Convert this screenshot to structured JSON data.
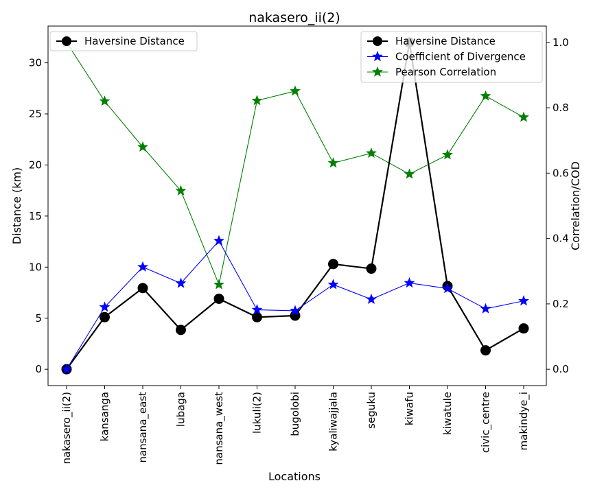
{
  "chart_data": {
    "type": "line",
    "title": "nakasero_ii(2)",
    "xlabel": "Locations",
    "ylabel_left": "Distance (km)",
    "ylabel_right": "Correlation/COD",
    "categories": [
      "nakasero_ii(2)",
      "kansanga",
      "nansana_east",
      "lubaga",
      "nansana_west",
      "lukuli(2)",
      "bugolobi",
      "kyaliwajjala",
      "seguku",
      "kiwafu",
      "kiwatule",
      "civic_centre",
      "makindye_i"
    ],
    "ylim_left": [
      -1.6,
      33.6
    ],
    "ylim_right": [
      -0.05,
      1.05
    ],
    "yticks_left": [
      0,
      5,
      10,
      15,
      20,
      25,
      30
    ],
    "yticks_right": [
      0.0,
      0.2,
      0.4,
      0.6,
      0.8,
      1.0
    ],
    "yticklabels_right": [
      "0.0",
      "0.2",
      "0.4",
      "0.6",
      "0.8",
      "1.0"
    ],
    "series": [
      {
        "name": "Haversine Distance",
        "axis": "left",
        "color": "#000000",
        "marker": "circle",
        "values": [
          0.0,
          5.1,
          7.95,
          3.85,
          6.9,
          5.1,
          5.25,
          10.3,
          9.85,
          32.0,
          8.15,
          1.85,
          4.0
        ]
      },
      {
        "name": "Coefficient of Divergence",
        "axis": "right",
        "color": "#0000ff",
        "marker": "star",
        "values": [
          0.0,
          0.19,
          0.313,
          0.263,
          0.393,
          0.182,
          0.179,
          0.259,
          0.214,
          0.264,
          0.247,
          0.185,
          0.209
        ]
      },
      {
        "name": "Pearson Correlation",
        "axis": "right",
        "color": "#008000",
        "marker": "star",
        "values": [
          1.0,
          0.82,
          0.68,
          0.546,
          0.259,
          0.822,
          0.851,
          0.631,
          0.661,
          0.597,
          0.656,
          0.836,
          0.771
        ]
      }
    ],
    "legends": [
      {
        "placement": "top-left",
        "entries": [
          "Haversine Distance"
        ]
      },
      {
        "placement": "top-right",
        "entries": [
          "Haversine Distance",
          "Coefficient of Divergence",
          "Pearson Correlation"
        ]
      }
    ],
    "grid": false
  }
}
